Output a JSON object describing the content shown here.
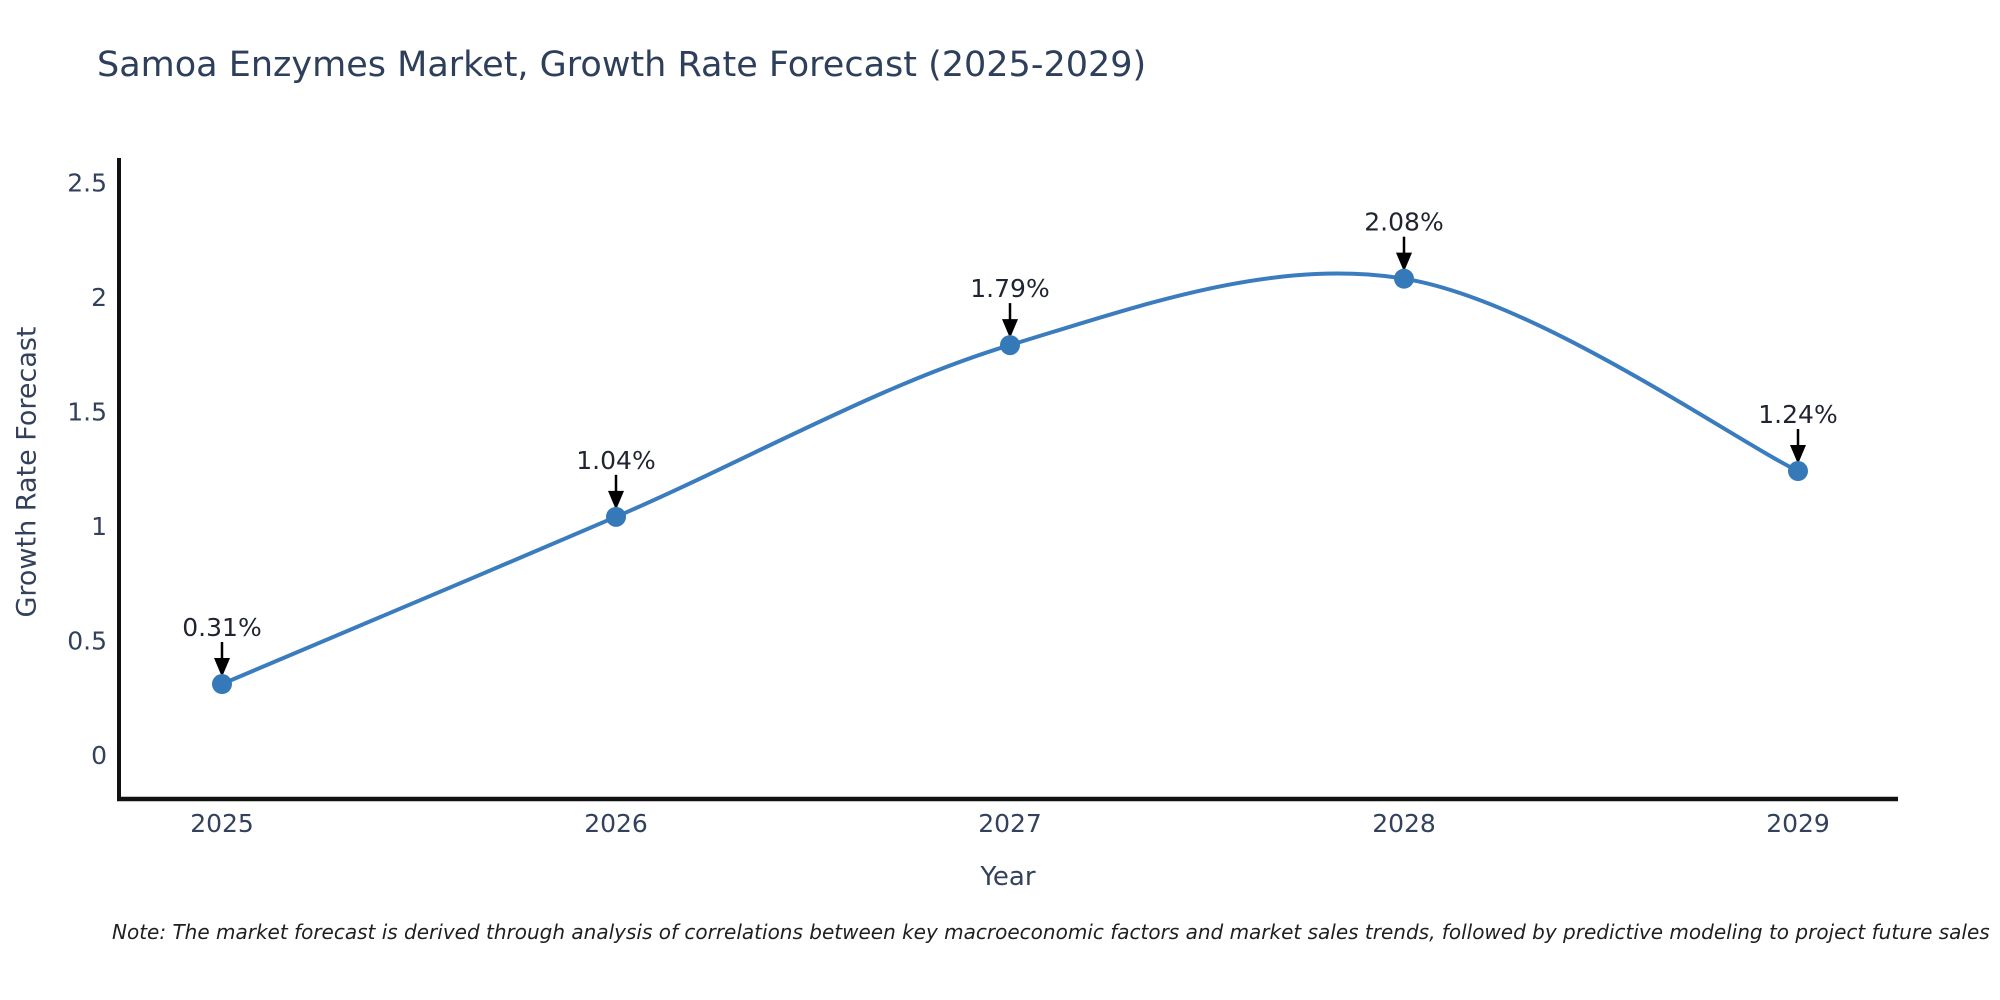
{
  "title": "Samoa Enzymes Market, Growth Rate Forecast (2025-2029)",
  "note": "Note: The market forecast is derived through analysis of correlations between key macroeconomic factors and market sales trends, followed by predictive modeling to project future sales",
  "chart_data": {
    "type": "line",
    "title": "Samoa Enzymes Market, Growth Rate Forecast (2025-2029)",
    "xlabel": "Year",
    "ylabel": "Growth Rate Forecast",
    "x": [
      2025,
      2026,
      2027,
      2028,
      2029
    ],
    "series": [
      {
        "name": "Growth Rate Forecast",
        "values": [
          0.31,
          1.04,
          1.79,
          2.08,
          1.24
        ]
      }
    ],
    "point_labels": [
      "0.31%",
      "1.04%",
      "1.79%",
      "2.08%",
      "1.24%"
    ],
    "x_tick_labels": [
      "2025",
      "2026",
      "2027",
      "2028",
      "2029"
    ],
    "y_tick_labels": [
      "0",
      "0.5",
      "1",
      "1.5",
      "2",
      "2.5"
    ],
    "y_tick_values": [
      0,
      0.5,
      1,
      1.5,
      2,
      2.5
    ],
    "ylim": [
      -0.2,
      2.6
    ],
    "xlim": [
      2024.73,
      2029.26
    ],
    "grid": false,
    "legend": "none",
    "line_style": "smooth-spline",
    "annotation_style": "value label with downward arrow above each data point"
  },
  "colors": {
    "line": "#3a7cbd",
    "marker": "#3579b8",
    "axis": "#111111",
    "arrow": "#000000",
    "heading_text": "#2e3f5c",
    "tick_text": "#33415c",
    "annotation_text": "#1f2430",
    "background": "#ffffff"
  }
}
